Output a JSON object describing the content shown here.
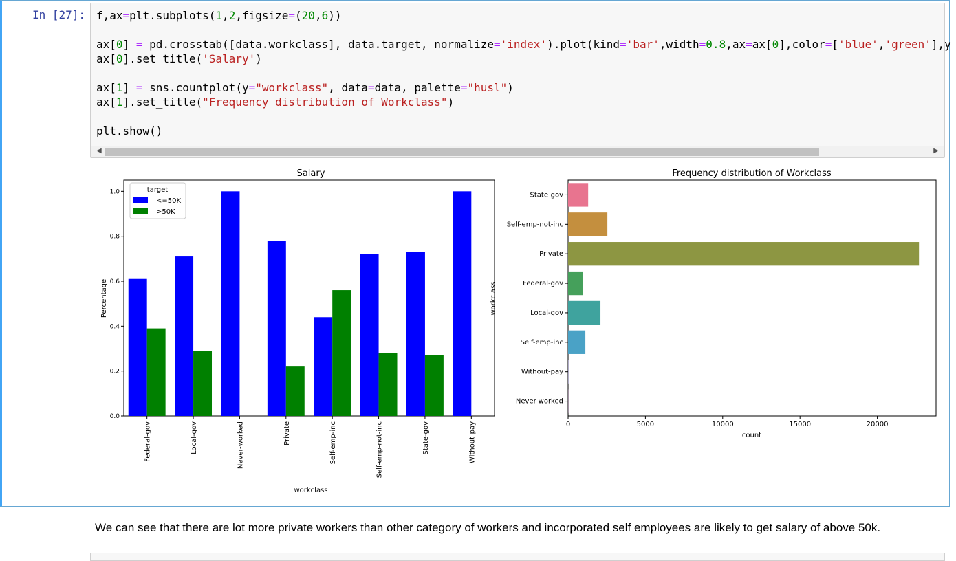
{
  "cell": {
    "prompt": "In [27]:",
    "code_lines": [
      "f,ax=plt.subplots(1,2,figsize=(20,6))",
      "",
      "ax[0] = pd.crosstab([data.workclass], data.target, normalize='index').plot(kind='bar',width=0.8,ax=ax[0],color=['blue','green'],y",
      "ax[0].set_title('Salary')",
      "",
      "ax[1] = sns.countplot(y=\"workclass\", data=data, palette=\"husl\")",
      "ax[1].set_title(\"Frequency distribution of Workclass\")",
      "",
      "plt.show()"
    ]
  },
  "markdown": {
    "text": "We can see that there are lot more private workers than other category of workers and incorporated self employees are likely to get salary of above 50k."
  },
  "colors": {
    "blue": "#0000ff",
    "green": "#008000"
  },
  "chart_data": [
    {
      "type": "bar",
      "title": "Salary",
      "xlabel": "workclass",
      "ylabel": "Percentage",
      "ylim": [
        0,
        1.05
      ],
      "yticks": [
        "0.0",
        "0.2",
        "0.4",
        "0.6",
        "0.8",
        "1.0"
      ],
      "categories": [
        "Federal-gov",
        "Local-gov",
        "Never-worked",
        "Private",
        "Self-emp-inc",
        "Self-emp-not-inc",
        "State-gov",
        "Without-pay"
      ],
      "legend_title": "target",
      "legend_position": "top-left",
      "series": [
        {
          "name": "<=50K",
          "color": "#0000ff",
          "values": [
            0.61,
            0.71,
            1.0,
            0.78,
            0.44,
            0.72,
            0.73,
            1.0
          ]
        },
        {
          "name": ">50K",
          "color": "#008000",
          "values": [
            0.39,
            0.29,
            0.0,
            0.22,
            0.56,
            0.28,
            0.27,
            0.0
          ]
        }
      ]
    },
    {
      "type": "bar",
      "orientation": "horizontal",
      "title": "Frequency distribution of Workclass",
      "xlabel": "count",
      "ylabel": "workclass",
      "xlim": [
        0,
        23800
      ],
      "xticks": [
        "0",
        "5000",
        "10000",
        "15000",
        "20000"
      ],
      "categories": [
        "State-gov",
        "Self-emp-not-inc",
        "Private",
        "Federal-gov",
        "Local-gov",
        "Self-emp-inc",
        "Without-pay",
        "Never-worked"
      ],
      "values": [
        1298,
        2541,
        22696,
        960,
        2093,
        1116,
        14,
        7
      ],
      "colors": [
        "#e8748f",
        "#c48f3e",
        "#8d9642",
        "#45a05b",
        "#3fa39e",
        "#4aa2c6",
        "#9c8fe8",
        "#e06fe3"
      ]
    }
  ]
}
